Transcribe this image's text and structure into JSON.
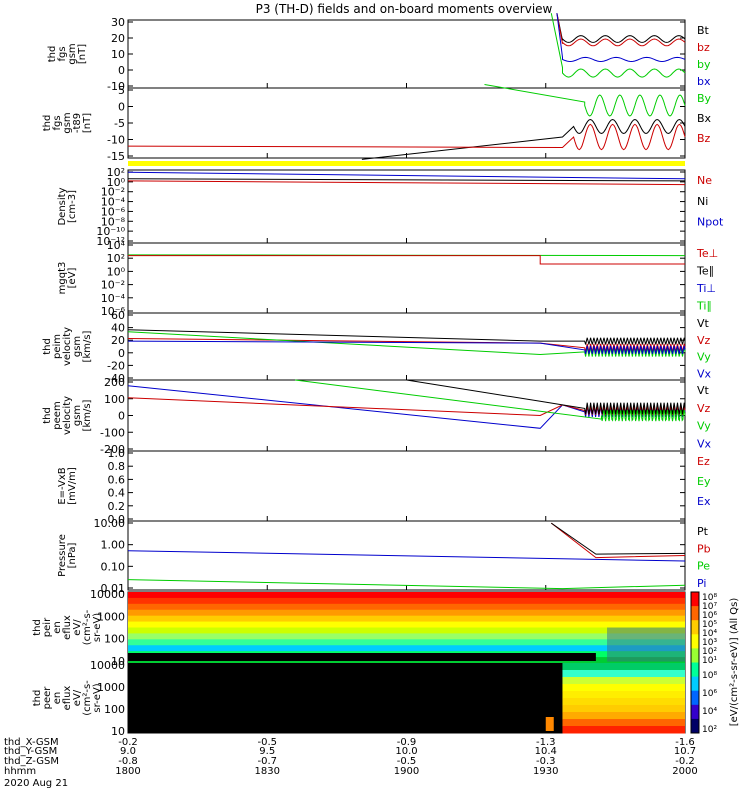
{
  "title": "P3 (TH-D) fields and on-board moments overview",
  "chart_data": {
    "type": "line",
    "time_axis": {
      "ticks": [
        "1800",
        "1830",
        "1900",
        "1930",
        "2000"
      ],
      "date": "2020 Aug 21"
    },
    "ephemeris": [
      {
        "label": "thd_X-GSM",
        "values": [
          "-0.2",
          "-0.5",
          "-0.9",
          "-1.3",
          "-1.6"
        ]
      },
      {
        "label": "thd_Y-GSM",
        "values": [
          "9.0",
          "9.5",
          "10.0",
          "10.4",
          "10.7"
        ]
      },
      {
        "label": "thd_Z-GSM",
        "values": [
          "-0.8",
          "-0.7",
          "-0.5",
          "-0.3",
          "-0.2"
        ]
      },
      {
        "label": "hhmm",
        "values": [
          "1800",
          "1830",
          "1900",
          "1930",
          "2000"
        ]
      }
    ],
    "panels": [
      {
        "id": "fgs_gsm",
        "ylabel": [
          "thd",
          "fgs",
          "gsm",
          "[nT]"
        ],
        "yticks": [
          "30",
          "20",
          "10",
          "0",
          "-10"
        ],
        "legend": [
          {
            "text": "Bt",
            "color": "#000000"
          },
          {
            "text": "bz",
            "color": "#cc0000"
          },
          {
            "text": "by",
            "color": "#00cc00"
          },
          {
            "text": "bx",
            "color": "#0000cc"
          }
        ]
      },
      {
        "id": "fgs_gsm_t89",
        "ylabel": [
          "thd",
          "fgs",
          "gsm",
          "-t89",
          "[nT]"
        ],
        "yticks": [
          "5",
          "0",
          "-5",
          "-10",
          "-15"
        ],
        "legend": [
          {
            "text": "By",
            "color": "#00cc00"
          },
          {
            "text": "Bx",
            "color": "#000000"
          },
          {
            "text": "Bz",
            "color": "#cc0000"
          }
        ]
      },
      {
        "id": "density",
        "ylabel": [
          "Density",
          "[cm-3]"
        ],
        "yticks": [
          "10²",
          "10⁰",
          "10⁻²",
          "10⁻⁴",
          "10⁻⁶",
          "10⁻⁸",
          "10⁻¹⁰",
          "10⁻¹²"
        ],
        "legend": [
          {
            "text": "Ne",
            "color": "#cc0000"
          },
          {
            "text": "Ni",
            "color": "#000000"
          },
          {
            "text": "Npot",
            "color": "#0000cc"
          }
        ]
      },
      {
        "id": "temperature",
        "ylabel": [
          "mgqt3",
          "[eV]"
        ],
        "yticks": [
          "10⁴",
          "10²",
          "10⁰",
          "10⁻²",
          "10⁻⁴",
          "10⁻⁶"
        ],
        "legend": [
          {
            "text": "Te⊥",
            "color": "#cc0000"
          },
          {
            "text": "Te∥",
            "color": "#000000"
          },
          {
            "text": "Ti⊥",
            "color": "#0000cc"
          },
          {
            "text": "Ti∥",
            "color": "#00cc00"
          }
        ]
      },
      {
        "id": "peim_velocity",
        "ylabel": [
          "thd",
          "peim",
          "velocity",
          "gsm",
          "[km/s]"
        ],
        "yticks": [
          "60",
          "40",
          "20",
          "0",
          "-20",
          "-40"
        ],
        "legend": [
          {
            "text": "Vt",
            "color": "#000000"
          },
          {
            "text": "Vz",
            "color": "#cc0000"
          },
          {
            "text": "Vy",
            "color": "#00cc00"
          },
          {
            "text": "Vx",
            "color": "#0000cc"
          }
        ]
      },
      {
        "id": "peem_velocity",
        "ylabel": [
          "thd",
          "peem",
          "velocity",
          "gsm",
          "[km/s]"
        ],
        "yticks": [
          "200",
          "100",
          "0",
          "-100",
          "-200"
        ],
        "legend": [
          {
            "text": "Vt",
            "color": "#000000"
          },
          {
            "text": "Vz",
            "color": "#cc0000"
          },
          {
            "text": "Vy",
            "color": "#00cc00"
          },
          {
            "text": "Vx",
            "color": "#0000cc"
          }
        ]
      },
      {
        "id": "e_field",
        "ylabel": [
          "E=-VxB",
          "[mV/m]"
        ],
        "yticks": [
          "1.0",
          "0.8",
          "0.6",
          "0.4",
          "0.2",
          "0.0"
        ],
        "legend": [
          {
            "text": "Ez",
            "color": "#cc0000"
          },
          {
            "text": "Ey",
            "color": "#00cc00"
          },
          {
            "text": "Ex",
            "color": "#0000cc"
          }
        ]
      },
      {
        "id": "pressure",
        "ylabel": [
          "Pressure",
          "[nPa]"
        ],
        "yticks": [
          "10.00",
          "1.00",
          "0.10",
          "0.01"
        ],
        "legend": [
          {
            "text": "Pt",
            "color": "#000000"
          },
          {
            "text": "Pb",
            "color": "#cc0000"
          },
          {
            "text": "Pe",
            "color": "#00cc00"
          },
          {
            "text": "Pi",
            "color": "#0000cc"
          }
        ]
      },
      {
        "id": "peir_spec",
        "ylabel": [
          "thd",
          "peir",
          "en",
          "eflux",
          "eV/",
          "(cm²-s-",
          "sr-eV)"
        ],
        "yticks": [
          "10000",
          "1000",
          "100",
          "10"
        ],
        "colorbar_ticks": [
          "10⁸",
          "10⁷",
          "10⁶",
          "10⁵",
          "10⁴",
          "10³",
          "10²",
          "10¹"
        ]
      },
      {
        "id": "peer_spec",
        "ylabel": [
          "thd",
          "peer",
          "en",
          "eflux",
          "eV/",
          "(cm²-s-",
          "sr-eV)"
        ],
        "yticks": [
          "10000",
          "1000",
          "100",
          "10"
        ],
        "colorbar_ticks": [
          "10⁸",
          "10⁶",
          "10⁴",
          "10²"
        ]
      }
    ],
    "colorbar_label": "[eV/(cm²-s-sr-eV)] (All Qs)"
  }
}
